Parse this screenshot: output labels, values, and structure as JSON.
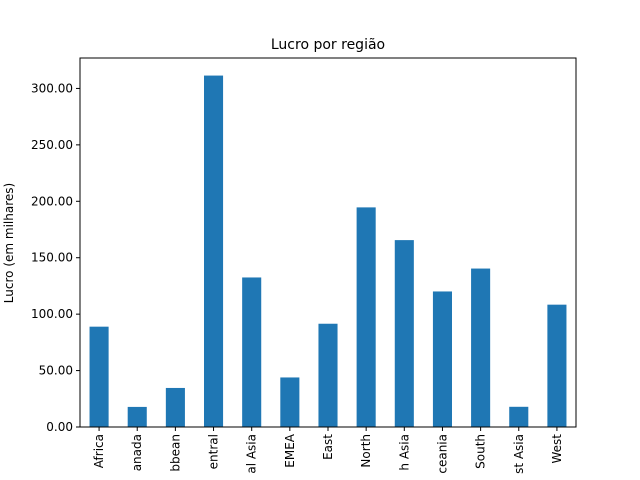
{
  "chart_data": {
    "type": "bar",
    "title": "Lucro por região",
    "xlabel": "",
    "ylabel": "Lucro (em milhares)",
    "categories": [
      "Africa",
      "Canada",
      "Caribbean",
      "Central",
      "Central Asia",
      "EMEA",
      "East",
      "North",
      "North Asia",
      "Oceania",
      "South",
      "Southeast Asia",
      "West"
    ],
    "tick_labels": [
      "Africa",
      "anada",
      "bbean",
      "entral",
      "al Asia",
      "EMEA",
      "East",
      "North",
      "h Asia",
      "ceania",
      "South",
      "st Asia",
      "West"
    ],
    "values": [
      88.9,
      17.8,
      34.6,
      311.4,
      132.5,
      43.9,
      91.5,
      194.6,
      165.6,
      120.1,
      140.4,
      17.9,
      108.4
    ],
    "ylim": [
      0,
      326.97
    ],
    "yticks": [
      0,
      50,
      100,
      150,
      200,
      250,
      300
    ],
    "ytick_labels": [
      "0.00",
      "50.00",
      "100.00",
      "150.00",
      "200.00",
      "250.00",
      "300.00"
    ],
    "bar_color": "#1f77b4",
    "grid": false,
    "legend": "none"
  }
}
